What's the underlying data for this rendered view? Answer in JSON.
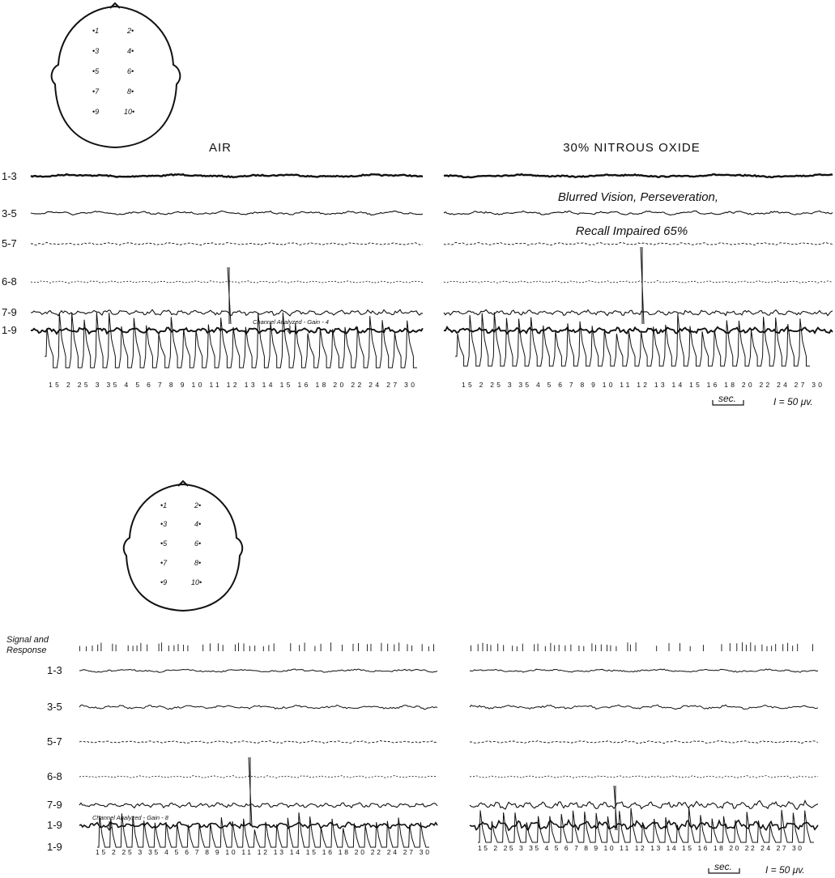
{
  "top_panel": {
    "electrodes": [
      "•1",
      "2•",
      "•3",
      "4•",
      "•5",
      "6•",
      "•7",
      "8•",
      "•9",
      "10•"
    ],
    "condition_left": "AIR",
    "condition_right": "30% NITROUS OXIDE",
    "channels": [
      "1-3",
      "3-5",
      "5-7",
      "6-8",
      "7-9",
      "1-9"
    ],
    "annotation_line1": "Blurred Vision, Perseveration,",
    "annotation_line2": "Recall Impaired 65%",
    "channel_note": "Channel Analyzed - Gain - 4",
    "digit_labels_left": "15 2 25 3 35   4  5 6 7   8 9 10 11 12 13   14 15 16 18   20 22 24 27 30",
    "digit_labels_right": "15 2 25 3 35   4  5 6 7   8 9 10 11 12 13   14 15 16 18   20 22 24 27 30",
    "scale_time": "sec.",
    "scale_amp": "I = 50 μv."
  },
  "bottom_panel": {
    "electrodes": [
      "•1",
      "2•",
      "•3",
      "4•",
      "•5",
      "6•",
      "•7",
      "8•",
      "•9",
      "10•"
    ],
    "signal_label_1": "Signal and",
    "signal_label_2": "Response",
    "channels": [
      "1-3",
      "3-5",
      "5-7",
      "6-8",
      "7-9",
      "1-9",
      "1-9"
    ],
    "channel_note": "Channel Analyzed - Gain - 8",
    "digit_labels_left": "15 2  25 3 35   4  5 6 7   8  9 10 11 12 13   14 15 16 18   20 22 24 27 30",
    "digit_labels_right": "15 2 25 3 35   4 5 6 7   8 9 10 11 12 13   14 15 16 18   20 22 24 27 30",
    "scale_time": "sec.",
    "scale_amp": "I = 50 μv."
  }
}
